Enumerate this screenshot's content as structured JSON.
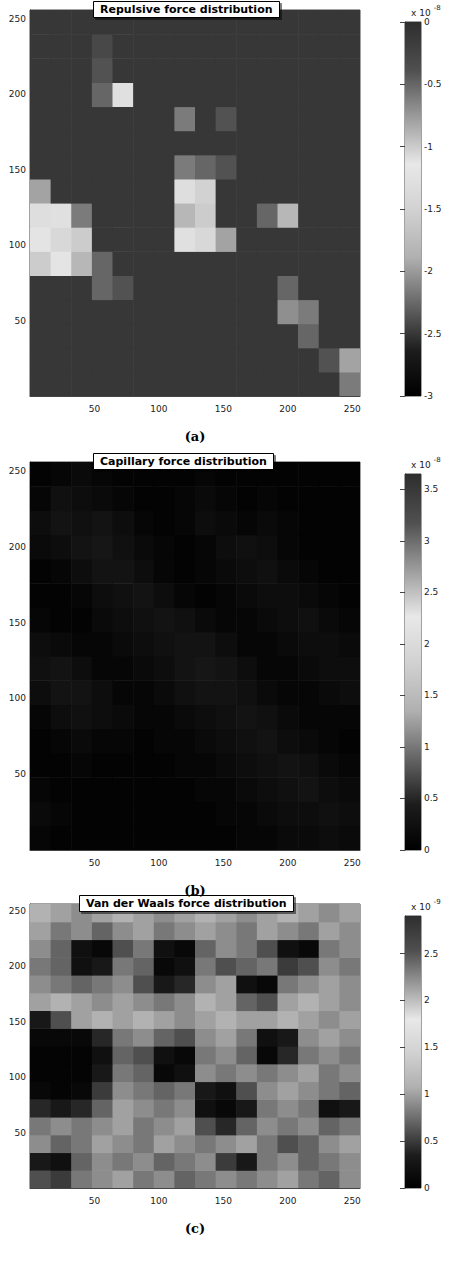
{
  "chart_data": [
    {
      "type": "heatmap",
      "title": "Repulsive force distribution",
      "caption": "(a)",
      "xlim": [
        0,
        256
      ],
      "ylim": [
        0,
        256
      ],
      "xticks": [
        50,
        100,
        150,
        200,
        250
      ],
      "yticks": [
        50,
        100,
        150,
        200,
        250
      ],
      "cell_x": [
        8,
        24,
        40,
        56,
        72,
        88,
        104,
        120,
        136,
        152,
        168,
        184,
        200,
        216,
        232,
        248
      ],
      "cell_y": [
        8,
        24,
        40,
        56,
        72,
        88,
        104,
        120,
        136,
        152,
        168,
        184,
        200,
        216,
        232,
        248
      ],
      "cells": [
        [
          -0.1,
          -0.1,
          -0.1,
          -0.1,
          -0.1,
          -0.1,
          -0.1,
          -0.1,
          -0.1,
          -0.1,
          -0.1,
          -0.1,
          -0.1,
          -0.1,
          -0.1,
          -0.6
        ],
        [
          -0.1,
          -0.1,
          -0.1,
          -0.1,
          -0.1,
          -0.1,
          -0.1,
          -0.1,
          -0.1,
          -0.1,
          -0.1,
          -0.1,
          -0.1,
          -0.1,
          -0.4,
          -0.8
        ],
        [
          -0.1,
          -0.1,
          -0.1,
          -0.1,
          -0.1,
          -0.1,
          -0.1,
          -0.1,
          -0.1,
          -0.1,
          -0.1,
          -0.1,
          -0.1,
          -0.5,
          -0.1,
          -0.1
        ],
        [
          -0.1,
          -0.1,
          -0.1,
          -0.1,
          -0.1,
          -0.1,
          -0.1,
          -0.1,
          -0.1,
          -0.1,
          -0.1,
          -0.1,
          -0.7,
          -0.6,
          -0.1,
          -0.1
        ],
        [
          -0.1,
          -0.1,
          -0.1,
          -0.5,
          -0.4,
          -0.1,
          -0.1,
          -0.1,
          -0.1,
          -0.1,
          -0.1,
          -0.1,
          -0.5,
          -0.1,
          -0.1,
          -0.1
        ],
        [
          -1.0,
          -1.2,
          -0.9,
          -0.5,
          -0.1,
          -0.1,
          -0.1,
          -0.1,
          -0.1,
          -0.1,
          -0.1,
          -0.1,
          -0.1,
          -0.1,
          -0.1,
          -0.1
        ],
        [
          -1.2,
          -1.4,
          -1.0,
          -0.1,
          -0.1,
          -0.1,
          -0.1,
          -1.1,
          -1.4,
          -0.8,
          -0.1,
          -0.1,
          -0.1,
          -0.1,
          -0.1,
          -0.1
        ],
        [
          -1.3,
          -1.1,
          -0.6,
          -0.1,
          -0.1,
          -0.1,
          -0.1,
          -0.9,
          -1.0,
          -0.1,
          -0.1,
          -0.5,
          -0.9,
          -0.1,
          -0.1,
          -0.1
        ],
        [
          -0.8,
          -0.1,
          -0.1,
          -0.1,
          -0.1,
          -0.1,
          -0.1,
          -1.3,
          -1.5,
          -0.1,
          -0.1,
          -0.1,
          -0.1,
          -0.1,
          -0.1,
          -0.1
        ],
        [
          -0.1,
          -0.1,
          -0.1,
          -0.1,
          -0.1,
          -0.1,
          -0.1,
          -0.6,
          -0.5,
          -0.4,
          -0.1,
          -0.1,
          -0.1,
          -0.1,
          -0.1,
          -0.1
        ],
        [
          -0.1,
          -0.1,
          -0.1,
          -0.1,
          -0.1,
          -0.1,
          -0.1,
          -0.1,
          -0.1,
          -0.1,
          -0.1,
          -0.1,
          -0.1,
          -0.1,
          -0.1,
          -0.1
        ],
        [
          -0.1,
          -0.1,
          -0.1,
          -0.1,
          -0.1,
          -0.1,
          -0.1,
          -0.6,
          -0.1,
          -0.4,
          -0.1,
          -0.1,
          -0.1,
          -0.1,
          -0.1,
          -0.1
        ],
        [
          -0.1,
          -0.1,
          -0.1,
          -0.5,
          -1.1,
          -0.1,
          -0.1,
          -0.1,
          -0.1,
          -0.1,
          -0.1,
          -0.1,
          -0.1,
          -0.1,
          -0.1,
          -0.1
        ],
        [
          -0.1,
          -0.1,
          -0.1,
          -0.4,
          -0.1,
          -0.1,
          -0.1,
          -0.1,
          -0.1,
          -0.1,
          -0.1,
          -0.1,
          -0.1,
          -0.1,
          -0.1,
          -0.1
        ],
        [
          -0.1,
          -0.1,
          -0.1,
          -0.3,
          -0.1,
          -0.1,
          -0.1,
          -0.1,
          -0.1,
          -0.1,
          -0.1,
          -0.1,
          -0.1,
          -0.1,
          -0.1,
          -0.1
        ],
        [
          -0.1,
          -0.1,
          -0.1,
          -0.1,
          -0.1,
          -0.1,
          -0.1,
          -0.1,
          -0.1,
          -0.1,
          -0.1,
          -0.1,
          -0.1,
          -0.1,
          -0.1,
          -0.1
        ]
      ],
      "colorbar": {
        "range": [
          -3,
          0
        ],
        "ticks": [
          -3,
          -2.5,
          -2,
          -1.5,
          -1,
          -0.5,
          0
        ],
        "scale_label": {
          "base": "x 10",
          "exponent": "-8"
        }
      }
    },
    {
      "type": "heatmap",
      "title": "Capillary force distribution",
      "caption": "(b)",
      "xlim": [
        0,
        256
      ],
      "ylim": [
        0,
        256
      ],
      "xticks": [
        50,
        100,
        150,
        200,
        250
      ],
      "yticks": [
        50,
        100,
        150,
        200,
        250
      ],
      "cell_x": [
        8,
        24,
        40,
        56,
        72,
        88,
        104,
        120,
        136,
        152,
        168,
        184,
        200,
        216,
        232,
        248
      ],
      "cell_y": [
        8,
        24,
        40,
        56,
        72,
        88,
        104,
        120,
        136,
        152,
        168,
        184,
        200,
        216,
        232,
        248
      ],
      "cells": [
        [
          0.1,
          0.05,
          0.05,
          0.05,
          0.05,
          0.05,
          0.05,
          0.05,
          0.05,
          0.05,
          0.1,
          0.1,
          0.15,
          0.15,
          0.2,
          0.15
        ],
        [
          0.15,
          0.1,
          0.05,
          0.05,
          0.05,
          0.05,
          0.05,
          0.05,
          0.05,
          0.1,
          0.1,
          0.15,
          0.2,
          0.2,
          0.25,
          0.2
        ],
        [
          0.1,
          0.05,
          0.05,
          0.05,
          0.05,
          0.05,
          0.05,
          0.05,
          0.1,
          0.1,
          0.15,
          0.2,
          0.25,
          0.3,
          0.2,
          0.15
        ],
        [
          0.05,
          0.05,
          0.1,
          0.05,
          0.05,
          0.05,
          0.05,
          0.1,
          0.1,
          0.15,
          0.2,
          0.25,
          0.3,
          0.25,
          0.15,
          0.1
        ],
        [
          0.05,
          0.1,
          0.15,
          0.1,
          0.1,
          0.05,
          0.1,
          0.1,
          0.15,
          0.2,
          0.25,
          0.3,
          0.2,
          0.15,
          0.1,
          0.05
        ],
        [
          0.1,
          0.2,
          0.25,
          0.2,
          0.15,
          0.1,
          0.1,
          0.15,
          0.2,
          0.25,
          0.3,
          0.25,
          0.15,
          0.1,
          0.1,
          0.1
        ],
        [
          0.2,
          0.3,
          0.3,
          0.2,
          0.1,
          0.1,
          0.15,
          0.25,
          0.3,
          0.3,
          0.25,
          0.15,
          0.1,
          0.1,
          0.15,
          0.2
        ],
        [
          0.25,
          0.3,
          0.2,
          0.1,
          0.1,
          0.15,
          0.2,
          0.3,
          0.35,
          0.3,
          0.2,
          0.1,
          0.1,
          0.15,
          0.2,
          0.2
        ],
        [
          0.2,
          0.15,
          0.1,
          0.1,
          0.15,
          0.2,
          0.25,
          0.3,
          0.3,
          0.2,
          0.1,
          0.1,
          0.15,
          0.2,
          0.2,
          0.15
        ],
        [
          0.1,
          0.05,
          0.05,
          0.15,
          0.2,
          0.25,
          0.3,
          0.25,
          0.15,
          0.1,
          0.1,
          0.15,
          0.2,
          0.25,
          0.15,
          0.1
        ],
        [
          0.05,
          0.05,
          0.1,
          0.2,
          0.25,
          0.3,
          0.2,
          0.1,
          0.05,
          0.1,
          0.15,
          0.2,
          0.2,
          0.15,
          0.1,
          0.05
        ],
        [
          0.05,
          0.1,
          0.2,
          0.3,
          0.3,
          0.2,
          0.1,
          0.05,
          0.1,
          0.15,
          0.2,
          0.25,
          0.15,
          0.1,
          0.05,
          0.05
        ],
        [
          0.15,
          0.2,
          0.3,
          0.35,
          0.25,
          0.15,
          0.1,
          0.05,
          0.1,
          0.2,
          0.25,
          0.2,
          0.1,
          0.05,
          0.05,
          0.05
        ],
        [
          0.2,
          0.3,
          0.25,
          0.3,
          0.2,
          0.1,
          0.05,
          0.1,
          0.2,
          0.15,
          0.1,
          0.15,
          0.1,
          0.05,
          0.05,
          0.05
        ],
        [
          0.1,
          0.25,
          0.2,
          0.15,
          0.1,
          0.05,
          0.05,
          0.1,
          0.15,
          0.1,
          0.05,
          0.1,
          0.05,
          0.05,
          0.05,
          0.05
        ],
        [
          0.05,
          0.1,
          0.15,
          0.1,
          0.05,
          0.05,
          0.05,
          0.05,
          0.1,
          0.05,
          0.05,
          0.05,
          0.05,
          0.05,
          0.05,
          0.05
        ]
      ],
      "colorbar": {
        "range": [
          0,
          3.65
        ],
        "ticks": [
          0,
          0.5,
          1,
          1.5,
          2,
          2.5,
          3,
          3.5
        ],
        "scale_label": {
          "base": "x 10",
          "exponent": "-8"
        }
      }
    },
    {
      "type": "heatmap",
      "title": "Van der Waals force distribution",
      "caption": "(c)",
      "xlim": [
        0,
        256
      ],
      "ylim": [
        0,
        256
      ],
      "xticks": [
        50,
        100,
        150,
        200,
        250
      ],
      "yticks": [
        50,
        100,
        150,
        200,
        250
      ],
      "cell_x": [
        8,
        24,
        40,
        56,
        72,
        88,
        104,
        120,
        136,
        152,
        168,
        184,
        200,
        216,
        232,
        248
      ],
      "cell_y": [
        8,
        24,
        40,
        56,
        72,
        88,
        104,
        120,
        136,
        152,
        168,
        184,
        200,
        216,
        232,
        248
      ],
      "cells": [
        [
          0.6,
          0.5,
          0.8,
          0.9,
          1.0,
          0.8,
          0.9,
          0.7,
          0.8,
          0.9,
          0.8,
          0.9,
          1.0,
          0.8,
          0.7,
          0.9
        ],
        [
          0.3,
          0.2,
          0.7,
          0.9,
          0.8,
          0.9,
          0.7,
          0.8,
          0.9,
          0.5,
          0.3,
          0.8,
          0.9,
          0.7,
          0.8,
          0.9
        ],
        [
          0.9,
          0.7,
          0.8,
          1.0,
          0.9,
          0.8,
          1.0,
          0.9,
          0.8,
          0.9,
          1.0,
          0.8,
          0.6,
          0.7,
          0.9,
          1.0
        ],
        [
          0.8,
          0.9,
          0.8,
          0.9,
          1.0,
          0.8,
          0.9,
          1.0,
          0.6,
          0.4,
          0.7,
          0.9,
          0.8,
          0.9,
          0.7,
          0.8
        ],
        [
          0.4,
          0.3,
          0.4,
          0.7,
          1.0,
          0.9,
          0.8,
          0.9,
          0.2,
          0.1,
          0.3,
          0.8,
          0.9,
          0.8,
          0.2,
          0.3
        ],
        [
          0.1,
          0.05,
          0.1,
          0.5,
          0.9,
          0.8,
          0.7,
          0.8,
          0.3,
          0.2,
          0.6,
          0.9,
          1.0,
          0.9,
          0.8,
          0.7
        ],
        [
          0.05,
          0.05,
          0.05,
          0.3,
          0.8,
          0.7,
          0.1,
          0.2,
          0.9,
          0.8,
          0.9,
          0.8,
          0.9,
          1.0,
          0.8,
          0.9
        ],
        [
          0.05,
          0.05,
          0.05,
          0.2,
          0.7,
          0.6,
          0.2,
          0.1,
          0.8,
          0.9,
          0.7,
          0.1,
          0.4,
          0.8,
          0.9,
          0.8
        ],
        [
          0.1,
          0.1,
          0.1,
          0.4,
          0.8,
          0.9,
          0.7,
          0.6,
          0.9,
          1.0,
          0.8,
          0.2,
          0.3,
          0.9,
          1.0,
          0.9
        ],
        [
          0.3,
          0.6,
          1.0,
          1.1,
          1.0,
          1.1,
          1.0,
          0.9,
          1.0,
          1.1,
          1.0,
          1.0,
          1.1,
          1.0,
          0.9,
          1.0
        ],
        [
          1.0,
          1.1,
          1.0,
          0.9,
          1.0,
          0.9,
          0.8,
          0.9,
          1.1,
          1.0,
          0.7,
          0.6,
          1.0,
          1.1,
          1.0,
          0.9
        ],
        [
          0.9,
          0.8,
          0.7,
          0.8,
          0.9,
          0.6,
          0.3,
          0.4,
          0.9,
          1.0,
          0.2,
          0.1,
          0.8,
          0.9,
          1.0,
          0.9
        ],
        [
          0.8,
          0.7,
          0.2,
          0.3,
          0.8,
          0.7,
          0.1,
          0.2,
          0.8,
          0.6,
          0.7,
          0.8,
          0.5,
          0.6,
          0.9,
          0.8
        ],
        [
          0.9,
          0.7,
          0.2,
          0.1,
          0.6,
          0.8,
          0.2,
          0.1,
          0.7,
          0.9,
          0.8,
          0.6,
          0.2,
          0.1,
          0.8,
          0.9
        ],
        [
          1.0,
          0.8,
          0.9,
          0.7,
          0.9,
          1.0,
          0.8,
          0.9,
          1.0,
          0.9,
          0.8,
          1.0,
          0.9,
          0.8,
          1.0,
          0.9
        ],
        [
          1.1,
          1.0,
          0.9,
          1.0,
          1.1,
          1.0,
          0.9,
          1.0,
          1.1,
          1.0,
          0.9,
          1.0,
          1.1,
          1.0,
          0.9,
          1.0
        ]
      ],
      "colorbar": {
        "range": [
          0,
          2.9
        ],
        "ticks": [
          0,
          0.5,
          1,
          1.5,
          2,
          2.5
        ],
        "scale_label": {
          "base": "x 10",
          "exponent": "-9"
        }
      }
    }
  ]
}
